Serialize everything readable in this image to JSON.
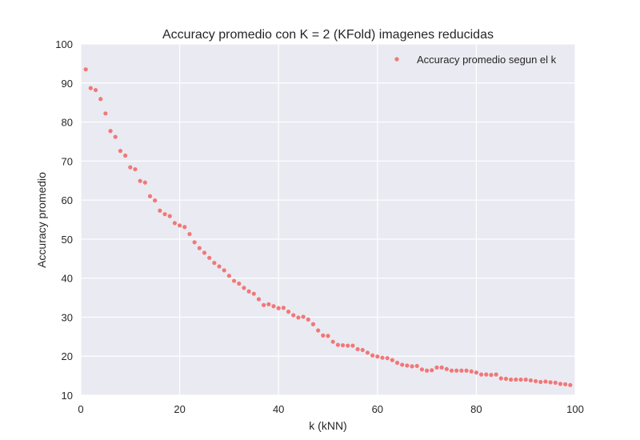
{
  "chart_data": {
    "type": "scatter",
    "title": "Accuracy promedio con K = 2 (KFold) imagenes reducidas",
    "xlabel": "k (kNN)",
    "ylabel": "Accuracy promedio",
    "xlim": [
      0,
      100
    ],
    "ylim": [
      10,
      100
    ],
    "xticks": [
      0,
      20,
      40,
      60,
      80,
      100
    ],
    "yticks": [
      10,
      20,
      30,
      40,
      50,
      60,
      70,
      80,
      90,
      100
    ],
    "grid": true,
    "legend_position": "top-right",
    "series": [
      {
        "name": "Accuracy promedio segun el k",
        "color": "#f07878",
        "x": [
          1,
          2,
          3,
          4,
          5,
          6,
          7,
          8,
          9,
          10,
          11,
          12,
          13,
          14,
          15,
          16,
          17,
          18,
          19,
          20,
          21,
          22,
          23,
          24,
          25,
          26,
          27,
          28,
          29,
          30,
          31,
          32,
          33,
          34,
          35,
          36,
          37,
          38,
          39,
          40,
          41,
          42,
          43,
          44,
          45,
          46,
          47,
          48,
          49,
          50,
          51,
          52,
          53,
          54,
          55,
          56,
          57,
          58,
          59,
          60,
          61,
          62,
          63,
          64,
          65,
          66,
          67,
          68,
          69,
          70,
          71,
          72,
          73,
          74,
          75,
          76,
          77,
          78,
          79,
          80,
          81,
          82,
          83,
          84,
          85,
          86,
          87,
          88,
          89,
          90,
          91,
          92,
          93,
          94,
          95,
          96,
          97,
          98,
          99
        ],
        "y": [
          93.5,
          88.7,
          88.2,
          85.9,
          82.2,
          77.7,
          76.2,
          72.6,
          71.4,
          68.4,
          67.9,
          64.9,
          64.5,
          61.0,
          59.9,
          57.3,
          56.4,
          55.9,
          54.1,
          53.5,
          53.1,
          51.3,
          49.2,
          47.7,
          46.5,
          45.2,
          43.9,
          43.0,
          42.0,
          40.6,
          39.3,
          38.6,
          37.5,
          36.6,
          36.0,
          34.6,
          33.1,
          33.3,
          32.8,
          32.3,
          32.4,
          31.4,
          30.5,
          29.9,
          30.1,
          29.4,
          28.2,
          26.6,
          25.3,
          25.2,
          23.7,
          22.9,
          22.8,
          22.7,
          22.7,
          21.8,
          21.6,
          20.9,
          20.2,
          19.9,
          19.6,
          19.5,
          19.0,
          18.3,
          17.8,
          17.6,
          17.4,
          17.5,
          16.6,
          16.3,
          16.4,
          17.1,
          17.1,
          16.7,
          16.3,
          16.3,
          16.3,
          16.3,
          16.1,
          15.8,
          15.3,
          15.3,
          15.2,
          15.3,
          14.3,
          14.2,
          14.0,
          14.0,
          14.0,
          14.0,
          13.8,
          13.6,
          13.4,
          13.5,
          13.3,
          13.2,
          12.9,
          12.8,
          12.6
        ]
      }
    ]
  }
}
